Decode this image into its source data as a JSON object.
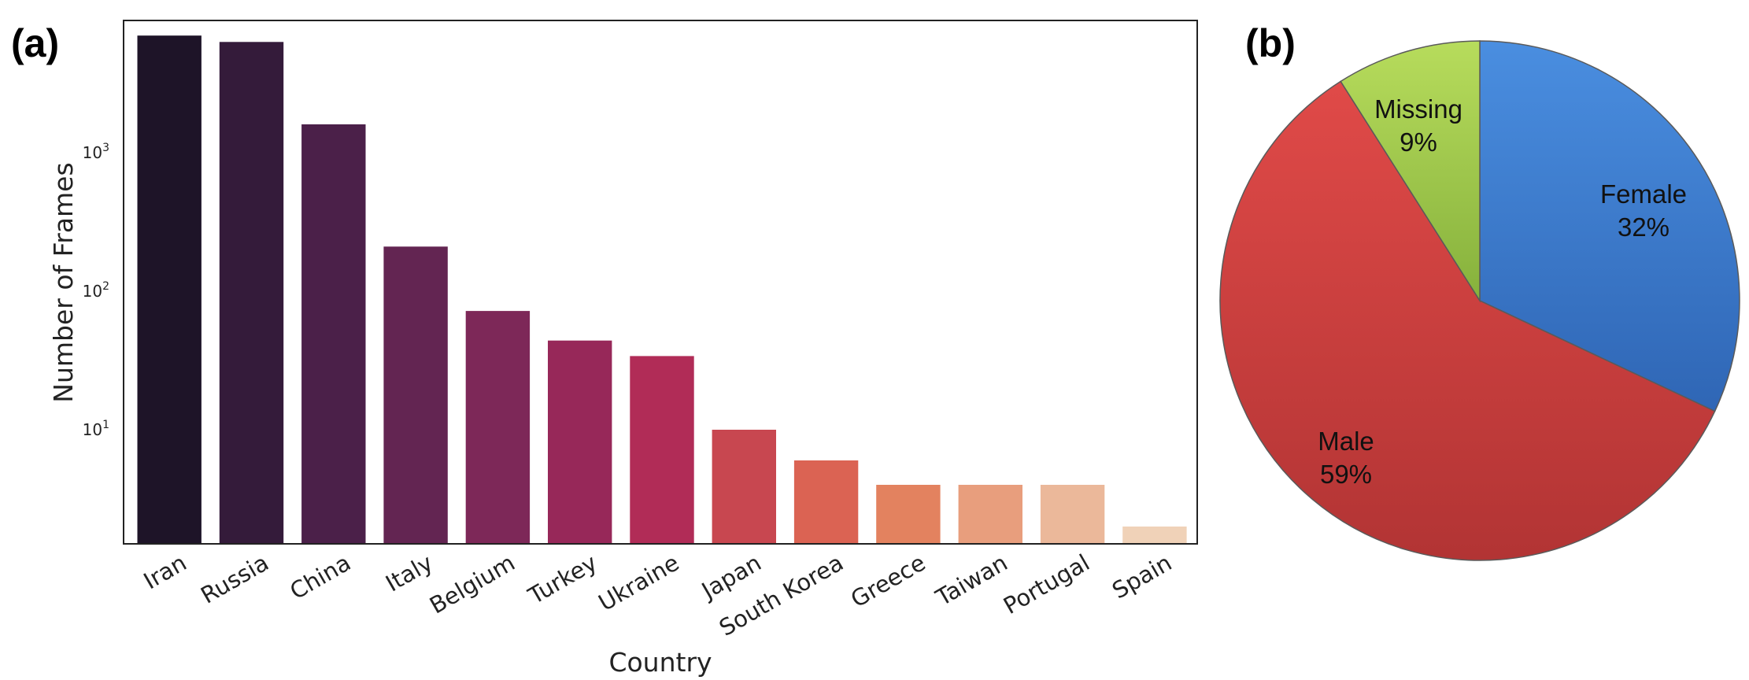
{
  "panels": {
    "a_label": "(a)",
    "b_label": "(b)"
  },
  "chart_data": [
    {
      "type": "bar",
      "xlabel": "Country",
      "ylabel": "Number of Frames",
      "yscale": "log",
      "ylim": [
        1.5,
        9000
      ],
      "yticks": [
        10,
        100,
        1000
      ],
      "ytick_labels": [
        {
          "base": "10",
          "exp": "1"
        },
        {
          "base": "10",
          "exp": "2"
        },
        {
          "base": "10",
          "exp": "3"
        }
      ],
      "grid": false,
      "categories": [
        "Iran",
        "Russia",
        "China",
        "Italy",
        "Belgium",
        "Turkey",
        "Ukraine",
        "Japan",
        "South Korea",
        "Greece",
        "Taiwan",
        "Portugal",
        "Spain"
      ],
      "values": [
        7000,
        6300,
        1600,
        210,
        72,
        44,
        34,
        10,
        6,
        4,
        4,
        4,
        2
      ],
      "colors": [
        "#1e1428",
        "#341b3a",
        "#4b2049",
        "#632552",
        "#7d2858",
        "#972859",
        "#b12c57",
        "#c84750",
        "#db6353",
        "#e3825f",
        "#e89e7d",
        "#ebb89a",
        "#f0d2b8"
      ]
    },
    {
      "type": "pie",
      "slices": [
        {
          "label": "Female",
          "pct_label": "32%",
          "value": 32,
          "color": "#3f7fd1"
        },
        {
          "label": "Male",
          "pct_label": "59%",
          "value": 59,
          "color": "#d44645"
        },
        {
          "label": "Missing",
          "pct_label": "9%",
          "value": 9,
          "color": "#9dc94c"
        }
      ]
    }
  ]
}
